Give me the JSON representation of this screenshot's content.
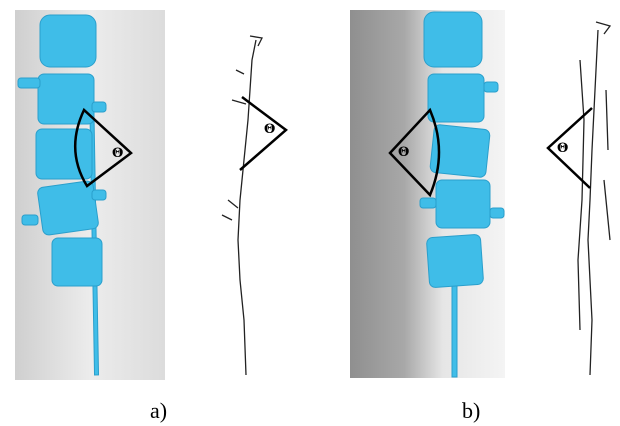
{
  "panels": [
    {
      "label": "a)",
      "images": [
        {
          "angle": "Θ"
        },
        {
          "angle": "Θ"
        }
      ]
    },
    {
      "label": "b)",
      "images": [
        {
          "angle": "Θ"
        },
        {
          "angle": "Θ"
        }
      ]
    }
  ]
}
